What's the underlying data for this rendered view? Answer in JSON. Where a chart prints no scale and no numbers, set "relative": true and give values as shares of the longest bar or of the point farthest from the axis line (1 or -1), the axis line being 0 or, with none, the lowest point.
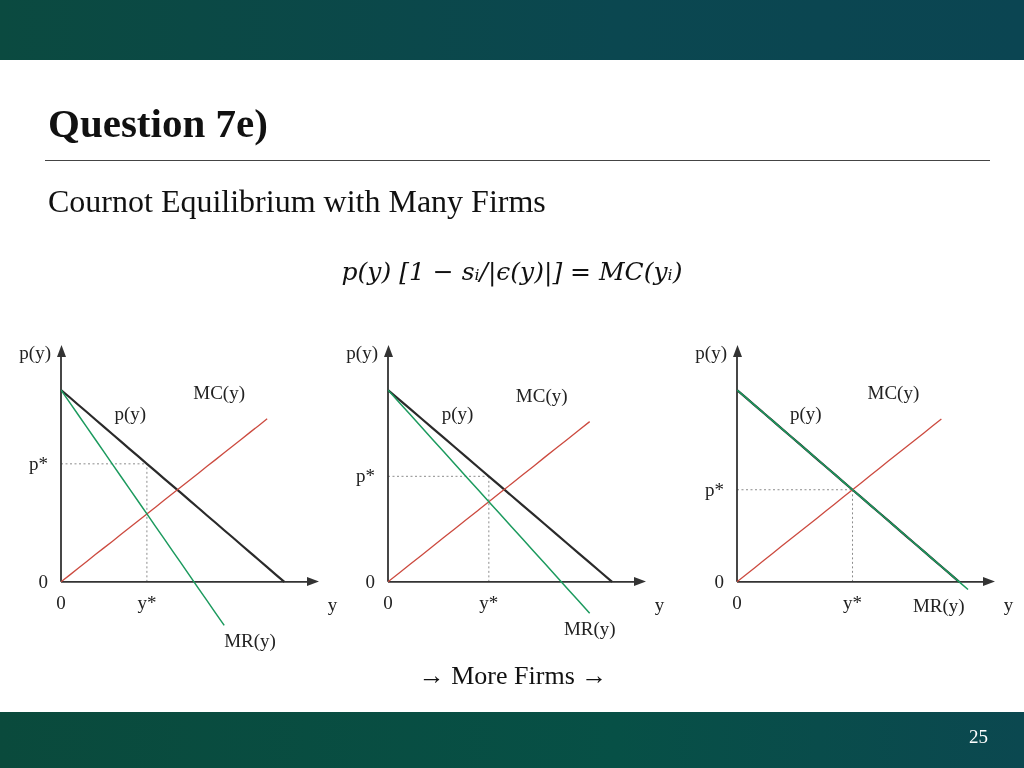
{
  "chart_data": [
    {
      "type": "other",
      "title": "Question 7e)",
      "subtitle": "Cournot Equilibrium with Many Firms",
      "annotations": [
        "p(y) [1 − sᵢ/|ϵ(y)|] = MC(yᵢ)",
        "→ More Firms →",
        "25"
      ]
    },
    {
      "type": "line",
      "relative": true,
      "xlabel": "y",
      "ylabel": "p(y)",
      "marker": "none",
      "categories": [
        "0",
        null,
        null,
        null,
        null,
        null,
        null,
        null,
        null,
        null,
        "y*",
        null,
        null,
        null,
        null,
        null,
        null,
        null,
        null,
        null,
        null,
        null,
        null,
        null,
        null,
        null,
        null,
        null,
        null,
        null,
        null
      ],
      "annotations": [
        "0"
      ],
      "ref_lines": [
        {
          "axis": "y",
          "value": 0.615,
          "label": "p*",
          "color": "#8c8c8c",
          "line_style": "dotted"
        },
        {
          "axis": "x",
          "value": "y*",
          "color": "#8c8c8c",
          "line_style": "dotted"
        }
      ],
      "series": [
        {
          "name": "p(y)",
          "color": "#2a2a2a",
          "values": [
            1,
            0.962,
            0.923,
            0.885,
            0.846,
            0.808,
            0.769,
            0.731,
            0.692,
            0.654,
            0.615,
            0.577,
            0.538,
            0.5,
            0.462,
            0.423,
            0.385,
            0.346,
            0.308,
            0.269,
            0.231,
            0.192,
            0.154,
            0.115,
            0.077,
            0.038,
            0,
            null,
            null,
            null,
            null
          ]
        },
        {
          "name": "MC(y)",
          "color": "#cc4a3f",
          "values": [
            0,
            0.035,
            0.071,
            0.106,
            0.142,
            0.177,
            0.212,
            0.248,
            0.283,
            0.319,
            0.354,
            0.389,
            0.425,
            0.46,
            0.496,
            0.531,
            0.566,
            0.602,
            0.637,
            0.673,
            0.708,
            0.743,
            0.779,
            0.814,
            0.85,
            null,
            null,
            null,
            null,
            null,
            null
          ]
        },
        {
          "name": "MR(y)",
          "color": "#1c9a5e",
          "values": [
            1,
            0.935,
            0.871,
            0.806,
            0.742,
            0.677,
            0.612,
            0.548,
            0.483,
            0.419,
            0.354,
            0.289,
            0.225,
            0.16,
            0.096,
            0.031,
            -0.034,
            -0.098,
            -0.163,
            -0.227,
            null,
            null,
            null,
            null,
            null,
            null,
            null,
            null,
            null,
            null,
            null
          ]
        }
      ]
    },
    {
      "type": "line",
      "relative": true,
      "xlabel": "y",
      "ylabel": "p(y)",
      "marker": "none",
      "categories": [
        "0",
        null,
        null,
        null,
        null,
        null,
        null,
        null,
        null,
        "y*",
        null,
        null,
        null,
        null,
        null,
        null,
        null,
        null,
        null,
        null,
        null,
        null,
        null,
        null
      ],
      "annotations": [
        "0"
      ],
      "ref_lines": [
        {
          "axis": "y",
          "value": 0.55,
          "label": "p*",
          "color": "#8c8c8c",
          "line_style": "dotted"
        },
        {
          "axis": "x",
          "value": "y*",
          "color": "#8c8c8c",
          "line_style": "dotted"
        }
      ],
      "series": [
        {
          "name": "p(y)",
          "color": "#2a2a2a",
          "values": [
            1,
            0.95,
            0.9,
            0.85,
            0.8,
            0.75,
            0.7,
            0.65,
            0.6,
            0.55,
            0.5,
            0.45,
            0.4,
            0.35,
            0.3,
            0.25,
            0.2,
            0.15,
            0.1,
            0.05,
            0,
            null,
            null,
            null
          ]
        },
        {
          "name": "MC(y)",
          "color": "#cc4a3f",
          "values": [
            0,
            0.046,
            0.093,
            0.139,
            0.186,
            0.232,
            0.278,
            0.325,
            0.371,
            0.418,
            0.464,
            0.51,
            0.557,
            0.603,
            0.65,
            0.696,
            0.742,
            0.789,
            0.835,
            null,
            null,
            null,
            null,
            null
          ]
        },
        {
          "name": "MR(y)",
          "color": "#1c9a5e",
          "values": [
            1,
            0.935,
            0.871,
            0.806,
            0.741,
            0.677,
            0.612,
            0.547,
            0.483,
            0.418,
            0.353,
            0.289,
            0.224,
            0.159,
            0.095,
            0.03,
            -0.035,
            -0.099,
            -0.164,
            null,
            null,
            null,
            null,
            null
          ]
        }
      ]
    },
    {
      "type": "line",
      "relative": true,
      "xlabel": "y",
      "ylabel": "p(y)",
      "marker": "none",
      "categories": [
        "0",
        null,
        null,
        null,
        null,
        null,
        null,
        null,
        null,
        null,
        null,
        null,
        null,
        "y*",
        null,
        null,
        null,
        null,
        null,
        null,
        null,
        null,
        null,
        null,
        null,
        null,
        null,
        null,
        null,
        null
      ],
      "annotations": [
        "0"
      ],
      "ref_lines": [
        {
          "axis": "y",
          "value": 0.48,
          "label": "p*",
          "color": "#8c8c8c",
          "line_style": "dotted"
        },
        {
          "axis": "x",
          "value": "y*",
          "color": "#8c8c8c",
          "line_style": "dotted"
        }
      ],
      "series": [
        {
          "name": "p(y)",
          "color": "#2a2a2a",
          "values": [
            1,
            0.96,
            0.92,
            0.88,
            0.84,
            0.8,
            0.76,
            0.72,
            0.68,
            0.64,
            0.6,
            0.56,
            0.52,
            0.48,
            0.44,
            0.4,
            0.36,
            0.32,
            0.28,
            0.24,
            0.2,
            0.16,
            0.12,
            0.08,
            0.04,
            0,
            null,
            null,
            null,
            null
          ]
        },
        {
          "name": "MC(y)",
          "color": "#cc4a3f",
          "values": [
            0,
            0.037,
            0.074,
            0.111,
            0.148,
            0.185,
            0.222,
            0.258,
            0.295,
            0.332,
            0.369,
            0.406,
            0.443,
            0.48,
            0.517,
            0.554,
            0.591,
            0.628,
            0.665,
            0.701,
            0.738,
            0.775,
            0.812,
            0.849,
            null,
            null,
            null,
            null,
            null,
            null
          ]
        },
        {
          "name": "MR(y)",
          "color": "#1c9a5e",
          "values": [
            1,
            0.96,
            0.92,
            0.88,
            0.84,
            0.8,
            0.76,
            0.72,
            0.68,
            0.64,
            0.6,
            0.56,
            0.52,
            0.48,
            0.44,
            0.4,
            0.36,
            0.32,
            0.28,
            0.24,
            0.2,
            0.16,
            0.12,
            0.08,
            0.04,
            0,
            -0.04,
            null,
            null,
            null
          ]
        }
      ]
    }
  ]
}
